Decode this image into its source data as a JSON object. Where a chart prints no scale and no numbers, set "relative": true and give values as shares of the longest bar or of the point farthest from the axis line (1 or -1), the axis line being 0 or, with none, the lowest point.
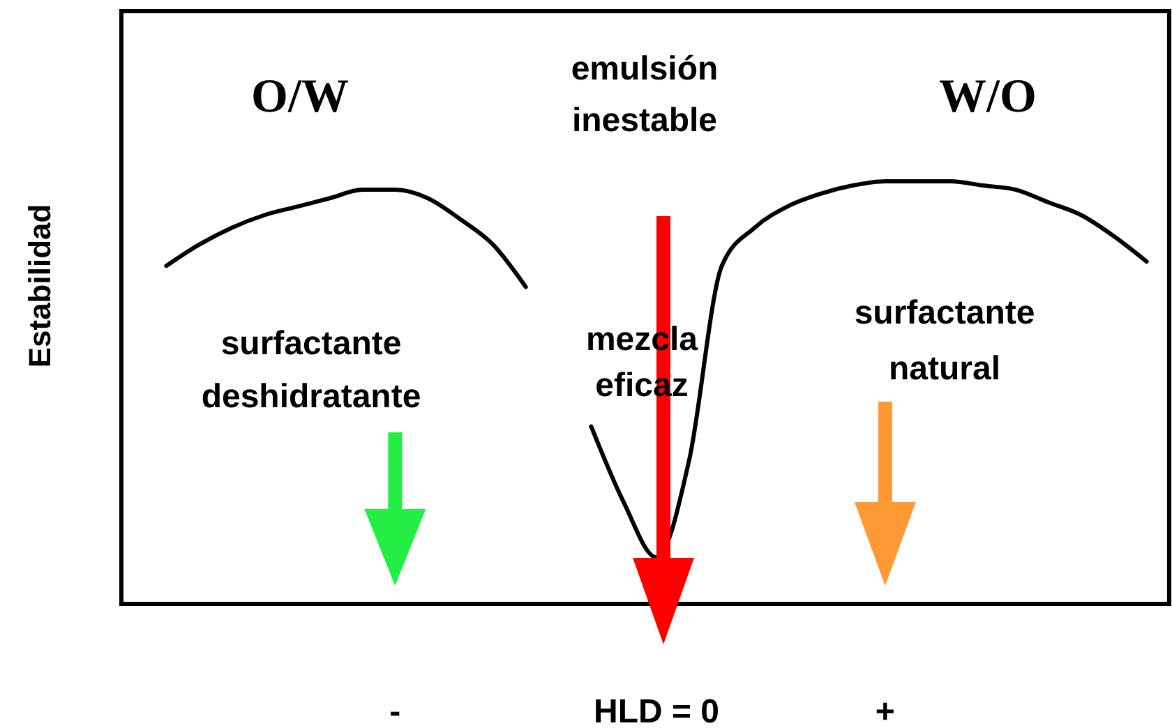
{
  "chart_data": {
    "type": "line",
    "relative": true,
    "ylabel": "Estabilidad",
    "categories": [
      null,
      null,
      null,
      null,
      null,
      null,
      null,
      null,
      "-",
      null,
      null,
      null,
      null,
      null,
      null,
      null,
      "HLD = 0",
      null,
      null,
      null,
      null,
      null,
      null,
      "+",
      null,
      null,
      null,
      null,
      null,
      null,
      null,
      null
    ],
    "series": [
      {
        "color": "#000000",
        "values": [
          null,
          0.8,
          0.85,
          0.89,
          0.92,
          0.94,
          0.96,
          0.98,
          0.98,
          0.96,
          0.91,
          0.85,
          0.75,
          null,
          0.42,
          0.24,
          0.11,
          0.34,
          0.8,
          0.89,
          0.94,
          0.97,
          0.99,
          1.0,
          1.0,
          1.0,
          0.99,
          0.98,
          0.95,
          0.92,
          0.87,
          0.81
        ]
      }
    ],
    "annotations": [
      "O/W",
      "emulsión inestable",
      "W/O",
      "surfactante deshidratante",
      "mezcla eficaz",
      "surfactante natural"
    ],
    "marker": "none",
    "line_style": "solid"
  }
}
